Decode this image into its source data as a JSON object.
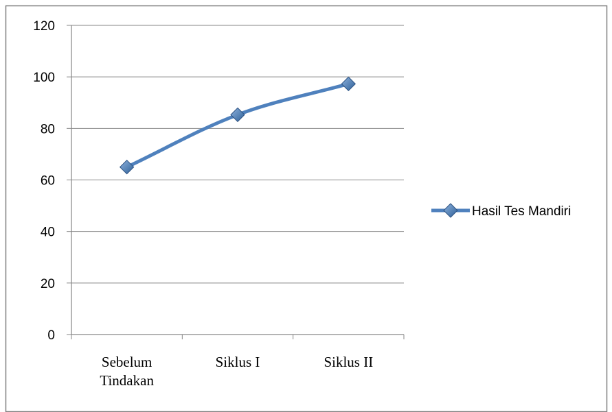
{
  "chart_data": {
    "type": "line",
    "categories": [
      [
        "Sebelum",
        "Tindakan"
      ],
      [
        "Siklus I"
      ],
      [
        "Siklus II"
      ]
    ],
    "series": [
      {
        "name": "Hasil Tes Mandiri",
        "values": [
          65,
          85.3,
          97.3
        ]
      }
    ],
    "yticks": [
      "0",
      "20",
      "40",
      "60",
      "80",
      "100",
      "120"
    ],
    "ylim": [
      0,
      120
    ],
    "grid": true,
    "legend": "right",
    "colors": {
      "line": "#4f81bd",
      "marker": "#3a6ea5",
      "grid": "#868686",
      "frame": "#7f7f7f"
    }
  }
}
